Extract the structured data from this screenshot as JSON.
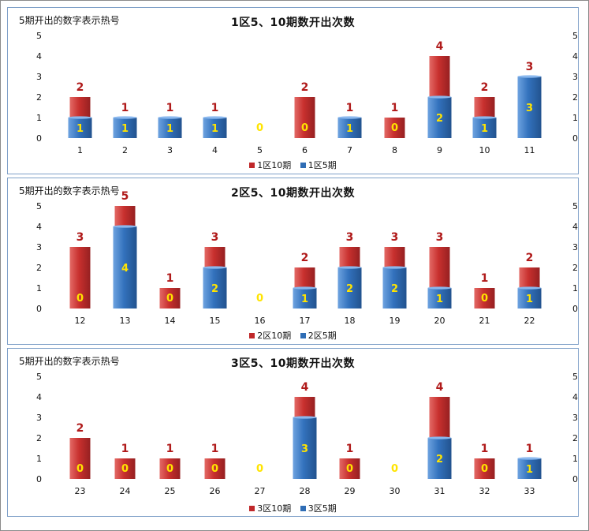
{
  "colors": {
    "ten_period": "#c0282a",
    "five_period": "#2f6db5",
    "label_ten": "#b01a1a",
    "label_five": "#ffe400"
  },
  "chart_data": [
    {
      "type": "bar",
      "title": "1区5、10期数开出次数",
      "note": "5期开出的数字表示热号",
      "categories": [
        "1",
        "2",
        "3",
        "4",
        "5",
        "6",
        "7",
        "8",
        "9",
        "10",
        "11"
      ],
      "series": [
        {
          "name": "1区10期",
          "values": [
            2,
            1,
            1,
            1,
            0,
            2,
            1,
            1,
            4,
            2,
            3
          ]
        },
        {
          "name": "1区5期",
          "values": [
            1,
            1,
            1,
            1,
            0,
            0,
            1,
            0,
            2,
            1,
            3
          ]
        }
      ],
      "ylim": [
        0,
        5
      ],
      "yticks": [
        "0",
        "1",
        "2",
        "3",
        "4",
        "5"
      ],
      "legend": "bottom"
    },
    {
      "type": "bar",
      "title": "2区5、10期数开出次数",
      "note": "5期开出的数字表示热号",
      "categories": [
        "12",
        "13",
        "14",
        "15",
        "16",
        "17",
        "18",
        "19",
        "20",
        "21",
        "22"
      ],
      "series": [
        {
          "name": "2区10期",
          "values": [
            3,
            5,
            1,
            3,
            0,
            2,
            3,
            3,
            3,
            1,
            2
          ]
        },
        {
          "name": "2区5期",
          "values": [
            0,
            4,
            0,
            2,
            0,
            1,
            2,
            2,
            1,
            0,
            1
          ]
        }
      ],
      "ylim": [
        0,
        5
      ],
      "yticks": [
        "0",
        "1",
        "2",
        "3",
        "4",
        "5"
      ],
      "legend": "bottom"
    },
    {
      "type": "bar",
      "title": "3区5、10期数开出次数",
      "note": "5期开出的数字表示热号",
      "categories": [
        "23",
        "24",
        "25",
        "26",
        "27",
        "28",
        "29",
        "30",
        "31",
        "32",
        "33"
      ],
      "series": [
        {
          "name": "3区10期",
          "values": [
            2,
            1,
            1,
            1,
            0,
            4,
            1,
            0,
            4,
            1,
            1
          ]
        },
        {
          "name": "3区5期",
          "values": [
            0,
            0,
            0,
            0,
            0,
            3,
            0,
            0,
            2,
            0,
            1
          ]
        }
      ],
      "ylim": [
        0,
        5
      ],
      "yticks": [
        "0",
        "1",
        "2",
        "3",
        "4",
        "5"
      ],
      "legend": "bottom"
    }
  ]
}
